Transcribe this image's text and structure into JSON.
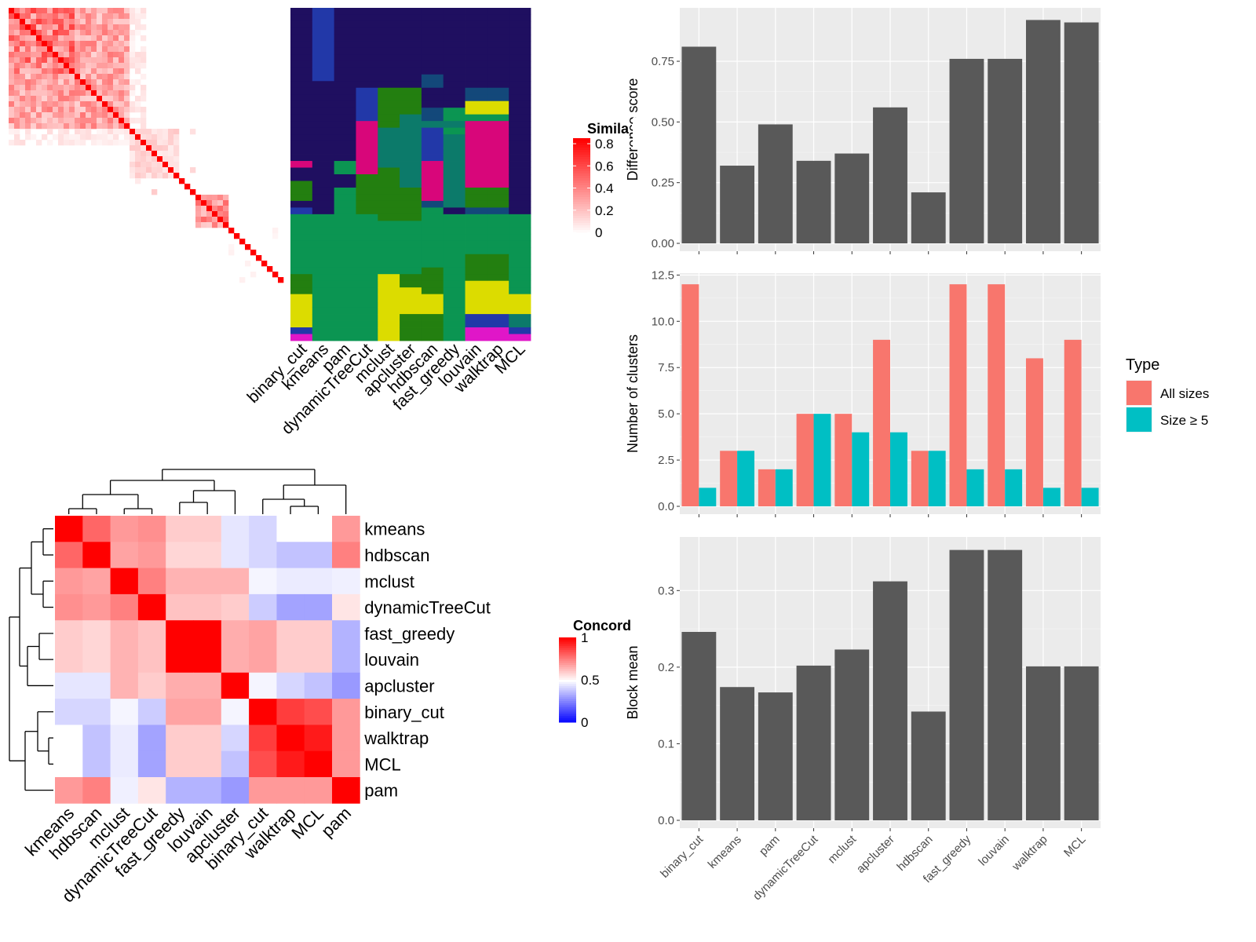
{
  "chart_data": [
    {
      "type": "heatmap",
      "id": "similarity",
      "legend_title": "Simila",
      "legend_ticks": [
        "0.8",
        "0.6",
        "0.4",
        "0.2",
        "0"
      ],
      "legend_values": [
        0.8,
        0.6,
        0.4,
        0.2,
        0
      ]
    },
    {
      "type": "heatmap",
      "id": "cluster-assignments",
      "columns": [
        "binary_cut",
        "kmeans",
        "pam",
        "dynamicTreeCut",
        "mclust",
        "apcluster",
        "hdbscan",
        "fast_greedy",
        "louvain",
        "walktrap",
        "MCL"
      ]
    },
    {
      "type": "heatmap",
      "id": "concordance",
      "rows": [
        "kmeans",
        "hdbscan",
        "mclust",
        "dynamicTreeCut",
        "fast_greedy",
        "louvain",
        "apcluster",
        "binary_cut",
        "walktrap",
        "MCL",
        "pam"
      ],
      "columns": [
        "kmeans",
        "hdbscan",
        "mclust",
        "dynamicTreeCut",
        "fast_greedy",
        "louvain",
        "apcluster",
        "binary_cut",
        "walktrap",
        "MCL",
        "pam"
      ],
      "values": [
        [
          1.0,
          0.8,
          0.7,
          0.72,
          0.6,
          0.6,
          0.45,
          0.42,
          0.5,
          0.5,
          0.7
        ],
        [
          0.8,
          1.0,
          0.68,
          0.7,
          0.58,
          0.58,
          0.45,
          0.42,
          0.38,
          0.38,
          0.75
        ],
        [
          0.7,
          0.68,
          1.0,
          0.75,
          0.65,
          0.65,
          0.65,
          0.48,
          0.46,
          0.46,
          0.47
        ],
        [
          0.72,
          0.7,
          0.75,
          1.0,
          0.62,
          0.62,
          0.6,
          0.4,
          0.32,
          0.32,
          0.55
        ],
        [
          0.6,
          0.58,
          0.65,
          0.62,
          1.0,
          1.0,
          0.66,
          0.68,
          0.6,
          0.6,
          0.35
        ],
        [
          0.6,
          0.58,
          0.65,
          0.62,
          1.0,
          1.0,
          0.66,
          0.68,
          0.6,
          0.6,
          0.35
        ],
        [
          0.45,
          0.45,
          0.65,
          0.6,
          0.66,
          0.66,
          1.0,
          0.48,
          0.42,
          0.38,
          0.3
        ],
        [
          0.42,
          0.42,
          0.48,
          0.4,
          0.68,
          0.68,
          0.48,
          1.0,
          0.88,
          0.85,
          0.7
        ],
        [
          0.5,
          0.38,
          0.46,
          0.32,
          0.6,
          0.6,
          0.42,
          0.88,
          1.0,
          0.95,
          0.7
        ],
        [
          0.5,
          0.38,
          0.46,
          0.32,
          0.6,
          0.6,
          0.38,
          0.85,
          0.95,
          1.0,
          0.7
        ],
        [
          0.7,
          0.75,
          0.47,
          0.55,
          0.35,
          0.35,
          0.3,
          0.7,
          0.7,
          0.7,
          1.0
        ]
      ],
      "legend_title": "Concord",
      "legend_ticks": [
        "1",
        "0.5",
        "0"
      ],
      "legend_values": [
        1,
        0.5,
        0
      ]
    },
    {
      "type": "bar",
      "id": "difference-score",
      "categories": [
        "binary_cut",
        "kmeans",
        "pam",
        "dynamicTreeCut",
        "mclust",
        "apcluster",
        "hdbscan",
        "fast_greedy",
        "louvain",
        "walktrap",
        "MCL"
      ],
      "values": [
        0.81,
        0.32,
        0.49,
        0.34,
        0.37,
        0.56,
        0.21,
        0.76,
        0.76,
        0.92,
        0.91
      ],
      "ylabel": "Difference score",
      "ylim": [
        0,
        0.97
      ],
      "yticks": [
        "0.00",
        "0.25",
        "0.50",
        "0.75"
      ],
      "ytick_values": [
        0,
        0.25,
        0.5,
        0.75
      ],
      "color": "#595959"
    },
    {
      "type": "bar",
      "id": "number-of-clusters",
      "categories": [
        "binary_cut",
        "kmeans",
        "pam",
        "dynamicTreeCut",
        "mclust",
        "apcluster",
        "hdbscan",
        "fast_greedy",
        "louvain",
        "walktrap",
        "MCL"
      ],
      "series": [
        {
          "name": "All sizes",
          "values": [
            12,
            3,
            2,
            5,
            5,
            9,
            3,
            12,
            12,
            8,
            9
          ],
          "color": "#F8766D"
        },
        {
          "name": "Size ≥ 5",
          "values": [
            1,
            3,
            2,
            5,
            4,
            4,
            3,
            2,
            2,
            1,
            1
          ],
          "color": "#00BFC4"
        }
      ],
      "ylabel": "Number of clusters",
      "ylim": [
        0,
        12.6
      ],
      "yticks": [
        "0.0",
        "2.5",
        "5.0",
        "7.5",
        "10.0",
        "12.5"
      ],
      "ytick_values": [
        0,
        2.5,
        5,
        7.5,
        10,
        12.5
      ],
      "legend_title": "Type",
      "legend_position": "right"
    },
    {
      "type": "bar",
      "id": "block-mean",
      "categories": [
        "binary_cut",
        "kmeans",
        "pam",
        "dynamicTreeCut",
        "mclust",
        "apcluster",
        "hdbscan",
        "fast_greedy",
        "louvain",
        "walktrap",
        "MCL"
      ],
      "values": [
        0.246,
        0.174,
        0.167,
        0.202,
        0.223,
        0.312,
        0.142,
        0.353,
        0.353,
        0.201,
        0.201
      ],
      "ylabel": "Block mean",
      "ylim": [
        0,
        0.37
      ],
      "yticks": [
        "0.0",
        "0.1",
        "0.2",
        "0.3"
      ],
      "ytick_values": [
        0,
        0.1,
        0.2,
        0.3
      ],
      "color": "#595959"
    }
  ]
}
